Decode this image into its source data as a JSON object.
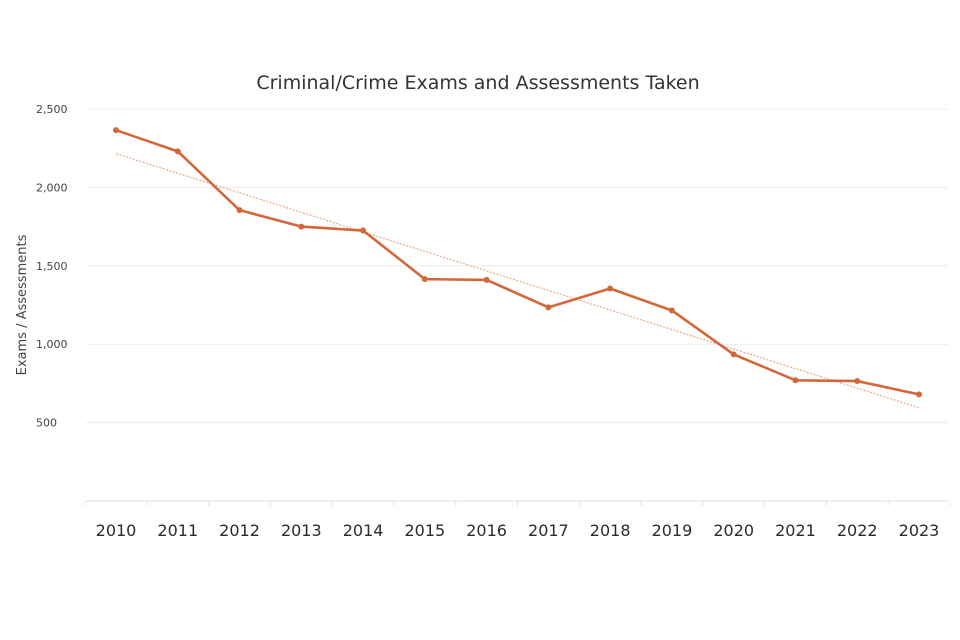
{
  "chart_data": {
    "type": "line",
    "title": "Criminal/Crime Exams and Assessments Taken",
    "xlabel": "",
    "ylabel": "Exams / Assessments",
    "categories": [
      "2010",
      "2011",
      "2012",
      "2013",
      "2014",
      "2015",
      "2016",
      "2017",
      "2018",
      "2019",
      "2020",
      "2021",
      "2022",
      "2023"
    ],
    "series": [
      {
        "values": [
          2365,
          2230,
          1855,
          1750,
          1725,
          1415,
          1410,
          1235,
          1355,
          1215,
          935,
          770,
          765,
          680
        ]
      }
    ],
    "trendline": {
      "start": 2215,
      "end": 595
    },
    "y_ticks": [
      {
        "value": 500,
        "label": "500"
      },
      {
        "value": 1000,
        "label": "1,000"
      },
      {
        "value": 1500,
        "label": "1,500"
      },
      {
        "value": 2000,
        "label": "2,000"
      },
      {
        "value": 2500,
        "label": "2,500"
      }
    ],
    "ylim": [
      0,
      2500
    ],
    "grid": true,
    "legend": "none",
    "colors": {
      "line": "#d4673a",
      "trend": "#e8a98c",
      "grid": "#ececec"
    }
  }
}
